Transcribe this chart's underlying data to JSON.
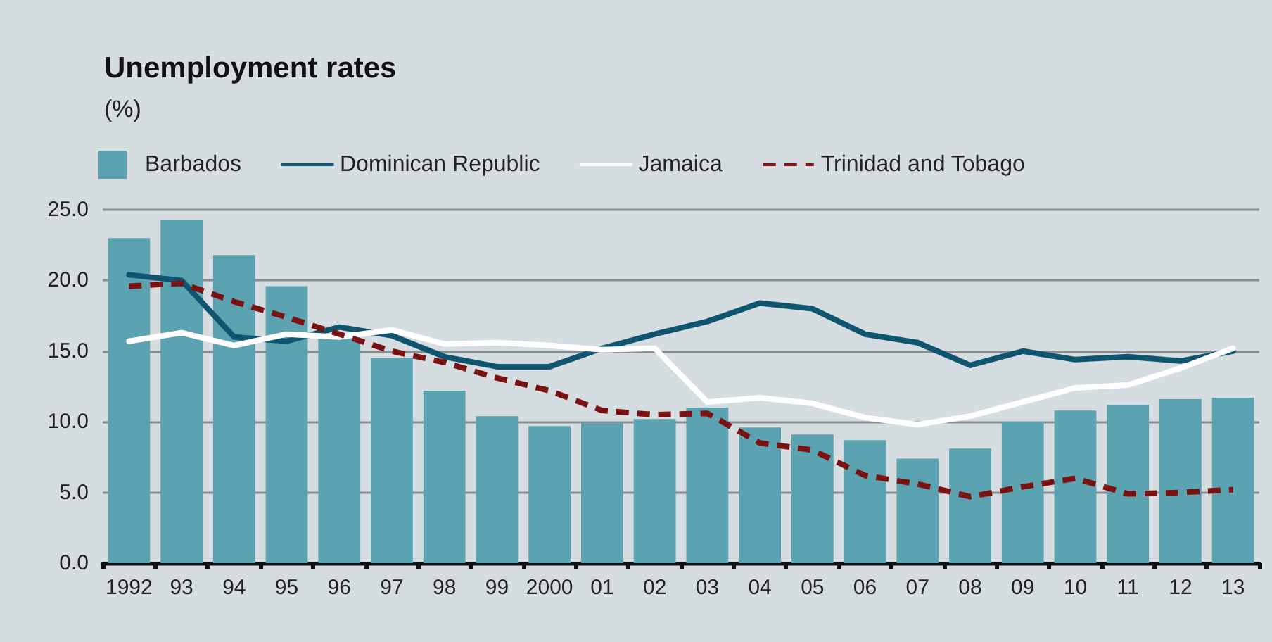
{
  "chart_data": {
    "type": "bar",
    "title": "Unemployment rates",
    "subtitle": "(%)",
    "categories": [
      "1992",
      "93",
      "94",
      "95",
      "96",
      "97",
      "98",
      "99",
      "2000",
      "01",
      "02",
      "03",
      "04",
      "05",
      "06",
      "07",
      "08",
      "09",
      "10",
      "11",
      "12",
      "13"
    ],
    "series": [
      {
        "name": "Barbados",
        "type": "bar",
        "color": "#5ba3b1",
        "values": [
          23.0,
          24.3,
          21.8,
          19.6,
          16.1,
          14.5,
          12.2,
          10.4,
          9.7,
          9.9,
          10.2,
          11.0,
          9.6,
          9.1,
          8.7,
          7.4,
          8.1,
          10.0,
          10.8,
          11.2,
          11.6,
          11.7
        ]
      },
      {
        "name": "Dominican Republic",
        "type": "line",
        "color": "#0f5570",
        "values": [
          20.4,
          20.0,
          16.0,
          15.7,
          16.7,
          16.1,
          14.6,
          13.9,
          13.9,
          15.2,
          16.2,
          17.1,
          18.4,
          18.0,
          16.2,
          15.6,
          14.0,
          15.0,
          14.4,
          14.6,
          14.3,
          15.0
        ]
      },
      {
        "name": "Jamaica",
        "type": "line",
        "color": "#ffffff",
        "values": [
          15.7,
          16.3,
          15.4,
          16.2,
          16.0,
          16.5,
          15.5,
          15.6,
          15.4,
          15.1,
          15.2,
          11.4,
          11.7,
          11.3,
          10.3,
          9.8,
          10.4,
          11.4,
          12.4,
          12.6,
          13.8,
          15.2
        ]
      },
      {
        "name": "Trinidad and Tobago",
        "type": "line",
        "color": "#7a1212",
        "line_style": "dashed",
        "values": [
          19.6,
          19.8,
          18.5,
          17.4,
          16.2,
          15.0,
          14.2,
          13.1,
          12.2,
          10.8,
          10.5,
          10.6,
          8.5,
          8.0,
          6.2,
          5.6,
          4.7,
          5.4,
          6.0,
          4.9,
          5.0,
          5.2
        ]
      }
    ],
    "ylim": [
      0,
      25
    ],
    "yticks": [
      {
        "value": 0,
        "label": "0.0"
      },
      {
        "value": 5,
        "label": "5.0"
      },
      {
        "value": 10,
        "label": "10.0"
      },
      {
        "value": 15,
        "label": "15.0"
      },
      {
        "value": 20,
        "label": "20.0"
      },
      {
        "value": 25,
        "label": "25.0"
      }
    ],
    "grid": "y",
    "legend": "top left",
    "marker": "none"
  }
}
